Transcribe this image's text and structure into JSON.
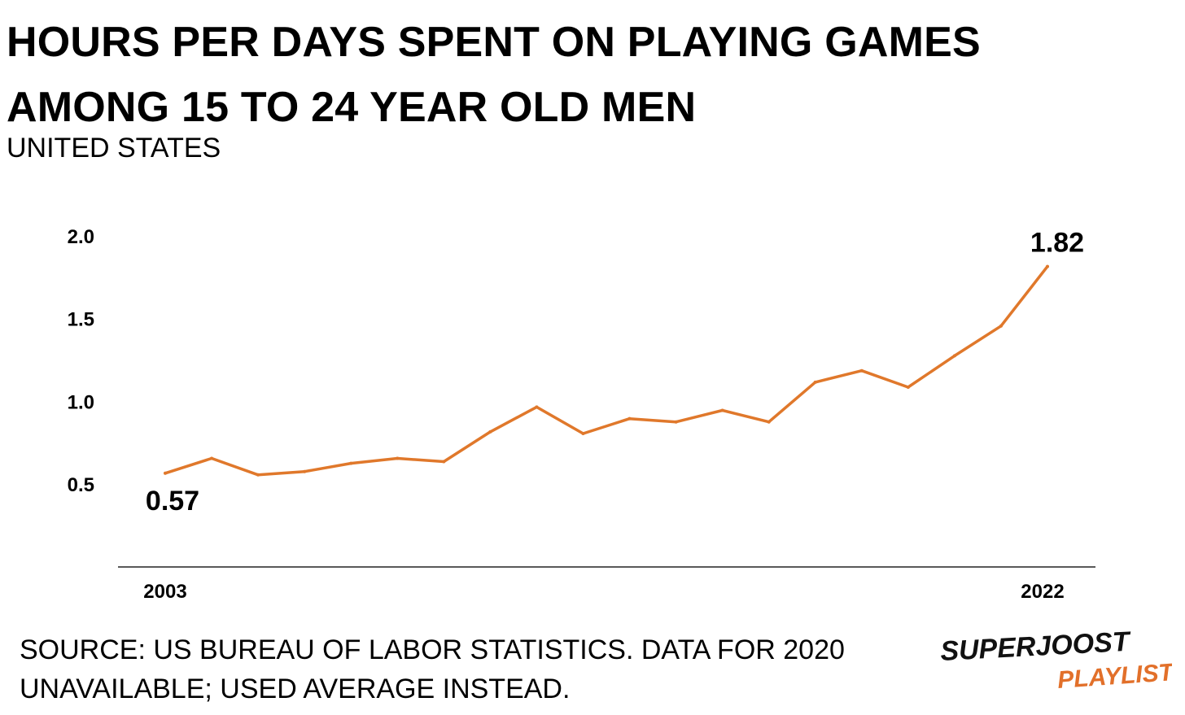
{
  "title_line1": "HOURS PER DAYS SPENT ON PLAYING GAMES",
  "title_line2": "AMONG 15 TO 24 YEAR OLD MEN",
  "subtitle": "UNITED STATES",
  "source_line1": "SOURCE: US BUREAU OF LABOR STATISTICS. DATA FOR 2020",
  "source_line2": "UNAVAILABLE; USED AVERAGE INSTEAD.",
  "logo": {
    "line1": "SUPERJOOST",
    "line2": "PLAYLIST",
    "color_line1": "#111111",
    "color_line2": "#e2702a"
  },
  "chart_data": {
    "type": "line",
    "x": [
      2003,
      2004,
      2005,
      2006,
      2007,
      2008,
      2009,
      2010,
      2011,
      2012,
      2013,
      2014,
      2015,
      2016,
      2017,
      2018,
      2019,
      2020,
      2021,
      2022
    ],
    "series": [
      {
        "values": [
          0.57,
          0.66,
          0.56,
          0.58,
          0.63,
          0.66,
          0.64,
          0.82,
          0.97,
          0.81,
          0.9,
          0.88,
          0.95,
          0.88,
          1.12,
          1.19,
          1.09,
          1.28,
          1.46,
          1.82
        ],
        "color": "#e0782b"
      }
    ],
    "yticks": [
      "2.0",
      "1.5",
      "1.0",
      "0.5"
    ],
    "ytick_values": [
      2.0,
      1.5,
      1.0,
      0.5
    ],
    "xtick_labels": [
      "2003",
      "2022"
    ],
    "annotations": [
      {
        "year": 2003,
        "label": "0.57"
      },
      {
        "year": 2022,
        "label": "1.82"
      }
    ],
    "grid": false
  }
}
